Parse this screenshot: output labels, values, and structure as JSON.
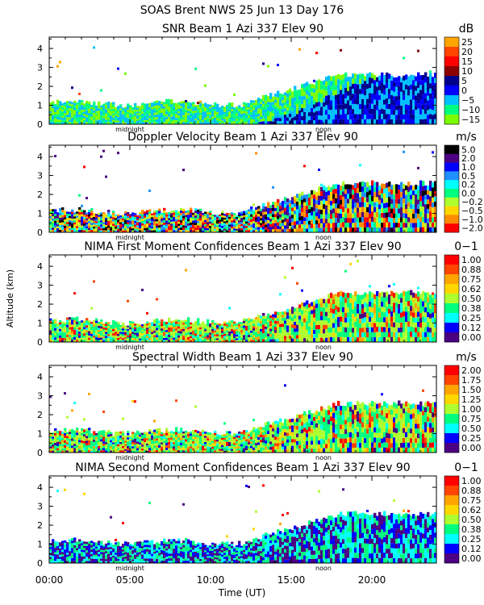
{
  "header": {
    "line1": "SOAS Brent NWS  25 Jun 13 Day 176"
  },
  "shared_axes": {
    "ylabel": "Altitude (km)",
    "xlabel": "Time (UT)",
    "x_tick_labels": [
      "00:00",
      "05:00",
      "10:00",
      "15:00",
      "20:00"
    ],
    "x_ticks_hours": [
      0,
      5,
      10,
      15,
      20
    ],
    "xlim_hours": [
      0,
      24
    ],
    "markers": [
      {
        "label": "midnight",
        "hour": 5.0
      },
      {
        "label": "noon",
        "hour": 17.0
      }
    ]
  },
  "chart_data": [
    {
      "type": "heatmap",
      "title": "SNR Beam 1 Azi 337 Elev 90",
      "unit": "dB",
      "ylim": [
        0,
        4.6
      ],
      "y_ticks": [
        0,
        1,
        2,
        3,
        4
      ],
      "colorbar": {
        "labels": [
          "25",
          "20",
          "15",
          "10",
          "5",
          "0",
          "−5",
          "−10",
          "−15"
        ],
        "colors": [
          "#ffa500",
          "#ff4500",
          "#ff0000",
          "#8b0000",
          "#00008b",
          "#0000ff",
          "#00bfff",
          "#00ff7f",
          "#7cfc00"
        ]
      }
    },
    {
      "type": "heatmap",
      "title": "Doppler Velocity Beam 1 Azi 337 Elev 90",
      "unit": "m/s",
      "ylim": [
        0,
        4.6
      ],
      "y_ticks": [
        0,
        1,
        2,
        3,
        4
      ],
      "colorbar": {
        "labels": [
          "5.0",
          "2.0",
          "1.0",
          "0.5",
          "0.2",
          "0.0",
          "−0.2",
          "−0.5",
          "−1.0",
          "−2.0"
        ],
        "colors": [
          "#000000",
          "#4b0082",
          "#0000ff",
          "#1e90ff",
          "#00ffff",
          "#00ff7f",
          "#adff2f",
          "#ffd700",
          "#ff8c00",
          "#ff0000"
        ]
      }
    },
    {
      "type": "heatmap",
      "title": "NIMA First Moment Confidences Beam 1 Azi 337 Elev 90",
      "unit": "0−1",
      "ylim": [
        0,
        4.6
      ],
      "y_ticks": [
        0,
        1,
        2,
        3,
        4
      ],
      "colorbar": {
        "labels": [
          "1.00",
          "0.88",
          "0.75",
          "0.62",
          "0.50",
          "0.38",
          "0.25",
          "0.12",
          "0.00"
        ],
        "colors": [
          "#ff0000",
          "#ff4500",
          "#ffa500",
          "#ffd700",
          "#adff2f",
          "#00ff7f",
          "#00ffff",
          "#0000ff",
          "#4b0082"
        ]
      }
    },
    {
      "type": "heatmap",
      "title": "Spectral Width Beam 1 Azi 337 Elev 90",
      "unit": "m/s",
      "ylim": [
        0,
        4.6
      ],
      "y_ticks": [
        0,
        1,
        2,
        3,
        4
      ],
      "colorbar": {
        "labels": [
          "2.00",
          "1.75",
          "1.50",
          "1.25",
          "1.00",
          "0.75",
          "0.50",
          "0.25",
          "0.00"
        ],
        "colors": [
          "#ff0000",
          "#ff4500",
          "#ffa500",
          "#ffd700",
          "#adff2f",
          "#00ff7f",
          "#00ffff",
          "#0000ff",
          "#4b0082"
        ]
      }
    },
    {
      "type": "heatmap",
      "title": "NIMA Second Moment Confidences Beam 1 Azi 337 Elev 90",
      "unit": "0−1",
      "ylim": [
        0,
        4.6
      ],
      "y_ticks": [
        0,
        1,
        2,
        3,
        4
      ],
      "colorbar": {
        "labels": [
          "1.00",
          "0.88",
          "0.75",
          "0.62",
          "0.50",
          "0.38",
          "0.25",
          "0.12",
          "0.00"
        ],
        "colors": [
          "#ff0000",
          "#ff4500",
          "#ffa500",
          "#ffd700",
          "#adff2f",
          "#00ff7f",
          "#00ffff",
          "#0000ff",
          "#4b0082"
        ]
      }
    }
  ]
}
